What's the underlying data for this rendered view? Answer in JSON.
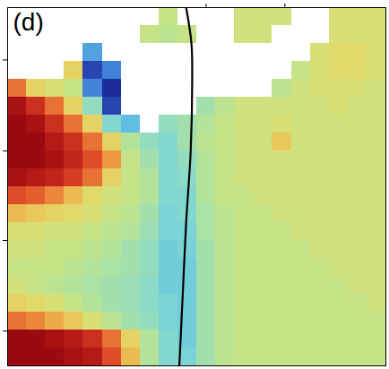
{
  "chart_data": {
    "type": "heatmap",
    "title": "(d)",
    "tick_labels": false,
    "xlim": [
      0,
      1
    ],
    "ylim": [
      0,
      1
    ],
    "xticks": [
      0.525,
      0.733
    ],
    "yticks": [
      0.097,
      0.35,
      0.6,
      0.854
    ],
    "zlim": [
      -1,
      1
    ],
    "cells": {
      "x": [
        0.025,
        0.075,
        0.125,
        0.175,
        0.225,
        0.275,
        0.325,
        0.375,
        0.425,
        0.475,
        0.525,
        0.575,
        0.625,
        0.675,
        0.725,
        0.775,
        0.825,
        0.875,
        0.925,
        0.975
      ],
      "y": [
        0.975,
        0.925,
        0.875,
        0.825,
        0.775,
        0.725,
        0.675,
        0.625,
        0.575,
        0.525,
        0.475,
        0.425,
        0.375,
        0.325,
        0.275,
        0.225,
        0.175,
        0.125,
        0.075,
        0.025
      ],
      "values": [
        [
          null,
          null,
          null,
          null,
          null,
          null,
          null,
          null,
          0.1,
          null,
          null,
          null,
          0.15,
          0.15,
          0.15,
          null,
          null,
          0.2,
          0.2,
          0.2
        ],
        [
          null,
          null,
          null,
          null,
          null,
          null,
          null,
          0.1,
          0.05,
          0.1,
          null,
          null,
          0.15,
          0.15,
          null,
          null,
          null,
          0.2,
          0.2,
          0.2
        ],
        [
          null,
          null,
          null,
          null,
          -0.6,
          null,
          null,
          null,
          null,
          null,
          null,
          null,
          null,
          null,
          null,
          null,
          0.2,
          0.25,
          0.25,
          0.2
        ],
        [
          null,
          null,
          null,
          0.3,
          -0.9,
          -0.7,
          null,
          null,
          null,
          null,
          null,
          null,
          null,
          null,
          null,
          0.1,
          0.2,
          0.25,
          0.25,
          0.2
        ],
        [
          0.6,
          0.3,
          0.2,
          0.1,
          -0.7,
          -1.0,
          null,
          null,
          null,
          null,
          null,
          null,
          null,
          null,
          0.05,
          0.15,
          0.2,
          0.2,
          0.2,
          0.15
        ],
        [
          0.95,
          0.8,
          0.6,
          0.3,
          -0.2,
          -0.9,
          null,
          null,
          null,
          null,
          -0.1,
          0.05,
          0.15,
          0.15,
          0.15,
          0.15,
          0.15,
          0.2,
          0.15,
          0.15
        ],
        [
          1.0,
          0.95,
          0.8,
          0.6,
          0.3,
          -0.3,
          -0.5,
          null,
          -0.2,
          -0.1,
          0,
          0.1,
          0.15,
          0.15,
          0.2,
          0.15,
          0.15,
          0.15,
          0.15,
          0.15
        ],
        [
          1.0,
          1.0,
          0.9,
          0.8,
          0.6,
          0.3,
          0,
          -0.2,
          -0.3,
          -0.1,
          0.05,
          0.1,
          0.15,
          0.15,
          0.35,
          0.15,
          0.15,
          0.15,
          0.15,
          0.15
        ],
        [
          1.0,
          1.0,
          0.95,
          0.85,
          0.7,
          0.5,
          0.1,
          -0.1,
          -0.3,
          -0.2,
          0,
          0.1,
          0.15,
          0.15,
          0.15,
          0.15,
          0.15,
          0.15,
          0.15,
          0.15
        ],
        [
          0.95,
          0.9,
          0.85,
          0.75,
          0.6,
          0.3,
          0.1,
          0,
          -0.3,
          -0.25,
          0,
          0.1,
          0.15,
          0.15,
          0.15,
          0.15,
          0.15,
          0.15,
          0.15,
          0.15
        ],
        [
          0.7,
          0.65,
          0.55,
          0.4,
          0.25,
          0.15,
          0.1,
          0,
          -0.3,
          -0.3,
          0,
          0.1,
          0.1,
          0.15,
          0.15,
          0.15,
          0.15,
          0.15,
          0.15,
          0.15
        ],
        [
          0.4,
          0.35,
          0.3,
          0.25,
          0.2,
          0.1,
          0.05,
          -0.1,
          -0.35,
          -0.3,
          -0.05,
          0.05,
          0.1,
          0.1,
          0.15,
          0.15,
          0.15,
          0.15,
          0.15,
          0.15
        ],
        [
          0.2,
          0.2,
          0.15,
          0.15,
          0.1,
          0.05,
          0,
          -0.15,
          -0.35,
          -0.35,
          -0.05,
          0.05,
          0.1,
          0.1,
          0.1,
          0.15,
          0.15,
          0.15,
          0.15,
          0.15
        ],
        [
          0.15,
          0.15,
          0.1,
          0.1,
          0.05,
          0,
          -0.1,
          -0.2,
          -0.4,
          -0.35,
          -0.1,
          0.05,
          0.1,
          0.1,
          0.1,
          0.1,
          0.15,
          0.15,
          0.15,
          0.15
        ],
        [
          0.1,
          0.1,
          0.1,
          0.05,
          0,
          -0.05,
          -0.1,
          -0.2,
          -0.4,
          -0.4,
          -0.1,
          0.05,
          0.1,
          0.1,
          0.1,
          0.1,
          0.1,
          0.15,
          0.15,
          0.15
        ],
        [
          0.15,
          0.1,
          0.05,
          0,
          -0.05,
          -0.1,
          -0.15,
          -0.25,
          -0.4,
          -0.4,
          -0.1,
          0.05,
          0.1,
          0.1,
          0.1,
          0.1,
          0.1,
          0.1,
          0.15,
          0.15
        ],
        [
          0.3,
          0.25,
          0.2,
          0.1,
          0,
          -0.1,
          -0.15,
          -0.25,
          -0.35,
          -0.4,
          -0.1,
          0.05,
          0.1,
          0.1,
          0.1,
          0.1,
          0.1,
          0.1,
          0.1,
          0.15
        ],
        [
          0.6,
          0.55,
          0.45,
          0.35,
          0.2,
          0.05,
          -0.1,
          -0.2,
          -0.35,
          -0.4,
          -0.1,
          0.05,
          0.1,
          0.1,
          0.1,
          0.1,
          0.1,
          0.1,
          0.1,
          0.1
        ],
        [
          1.0,
          1.0,
          0.95,
          0.9,
          0.8,
          0.6,
          0.3,
          0,
          -0.3,
          -0.4,
          -0.1,
          0.05,
          0.1,
          0.1,
          0.1,
          0.1,
          0.1,
          0.1,
          0.1,
          0.1
        ],
        [
          1.0,
          1.0,
          1.0,
          0.95,
          0.9,
          0.7,
          0.4,
          0,
          -0.3,
          -0.35,
          -0.1,
          0.05,
          0.1,
          0.1,
          0.1,
          0.1,
          0.1,
          0.1,
          0.1,
          0.1
        ]
      ]
    },
    "series": [
      {
        "type": "line",
        "color": "#000000",
        "x": [
          0.454,
          0.463,
          0.472,
          0.484,
          0.488,
          0.486,
          0.472
        ],
        "y": [
          0,
          0.2,
          0.4,
          0.6,
          0.8,
          0.9,
          1
        ]
      }
    ]
  }
}
